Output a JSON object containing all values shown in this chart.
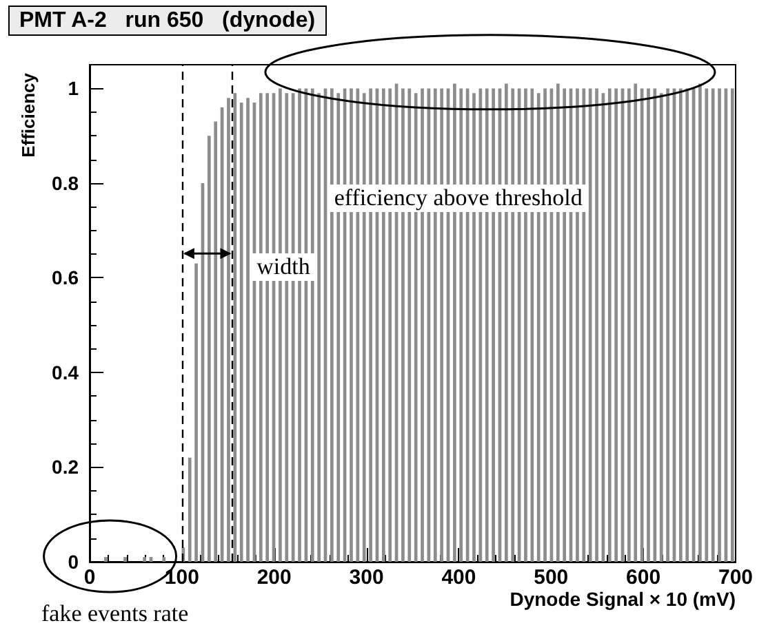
{
  "chart_data": {
    "type": "histogram",
    "title": "PMT A-2   run 650   (dynode)",
    "xlabel": "Dynode Signal × 10 (mV)",
    "ylabel": "Efficiency",
    "bins": [
      0,
      7,
      14,
      21,
      28,
      35,
      42,
      49,
      56,
      63,
      70,
      77,
      84,
      91,
      98,
      105,
      112,
      119,
      126,
      133,
      140,
      147,
      154,
      161,
      168,
      175,
      182,
      189,
      196,
      203,
      210,
      217,
      224,
      231,
      238,
      245,
      252,
      259,
      266,
      273,
      280,
      287,
      294,
      301,
      308,
      315,
      322,
      329,
      336,
      343,
      350,
      357,
      364,
      371,
      378,
      385,
      392,
      399,
      406,
      413,
      420,
      427,
      434,
      441,
      448,
      455,
      462,
      469,
      476,
      483,
      490,
      497,
      504,
      511,
      518,
      525,
      532,
      539,
      546,
      553,
      560,
      567,
      574,
      581,
      588,
      595,
      602,
      609,
      616,
      623,
      630,
      637,
      644,
      651,
      658,
      665,
      672,
      679,
      686,
      693,
      700
    ],
    "values": [
      0,
      0,
      0.01,
      0,
      0,
      0.01,
      0,
      0,
      0.01,
      0.01,
      0,
      0.01,
      0,
      0,
      0.03,
      0.22,
      0.63,
      0.8,
      0.9,
      0.93,
      0.96,
      0.98,
      0.99,
      0.97,
      0.98,
      0.97,
      0.99,
      0.99,
      0.99,
      1,
      0.99,
      0.99,
      1,
      1,
      1,
      0.99,
      1,
      1,
      0.99,
      1,
      1,
      1,
      0.99,
      1,
      1,
      1,
      1,
      1.01,
      1,
      1,
      0.99,
      1,
      1,
      1,
      1,
      1,
      1.01,
      1,
      1,
      0.99,
      1,
      1,
      1,
      1,
      1.01,
      1,
      1,
      1,
      1,
      0.99,
      1,
      1,
      1.01,
      1,
      1,
      1,
      1,
      1,
      1,
      0.99,
      1,
      1,
      1,
      1,
      1.01,
      1,
      1,
      1,
      0.99,
      1,
      1,
      1,
      1,
      1,
      1.01,
      1,
      1,
      1,
      1,
      1
    ],
    "color": "#8c8c8c",
    "xlim": [
      0,
      700
    ],
    "xticks": [
      0,
      100,
      200,
      300,
      400,
      500,
      600,
      700
    ],
    "ylim": [
      0,
      1.05
    ],
    "yticks": [
      0,
      0.2,
      0.4,
      0.6,
      0.8,
      1
    ],
    "grid": false,
    "ref_lines": [
      {
        "axis": "x",
        "value": 100,
        "color": "#000000",
        "line_style": "dashed"
      },
      {
        "axis": "x",
        "value": 155,
        "color": "#000000",
        "line_style": "dashed"
      }
    ],
    "annotations": [
      "efficiency above threshold",
      "width",
      "fake events rate"
    ]
  }
}
